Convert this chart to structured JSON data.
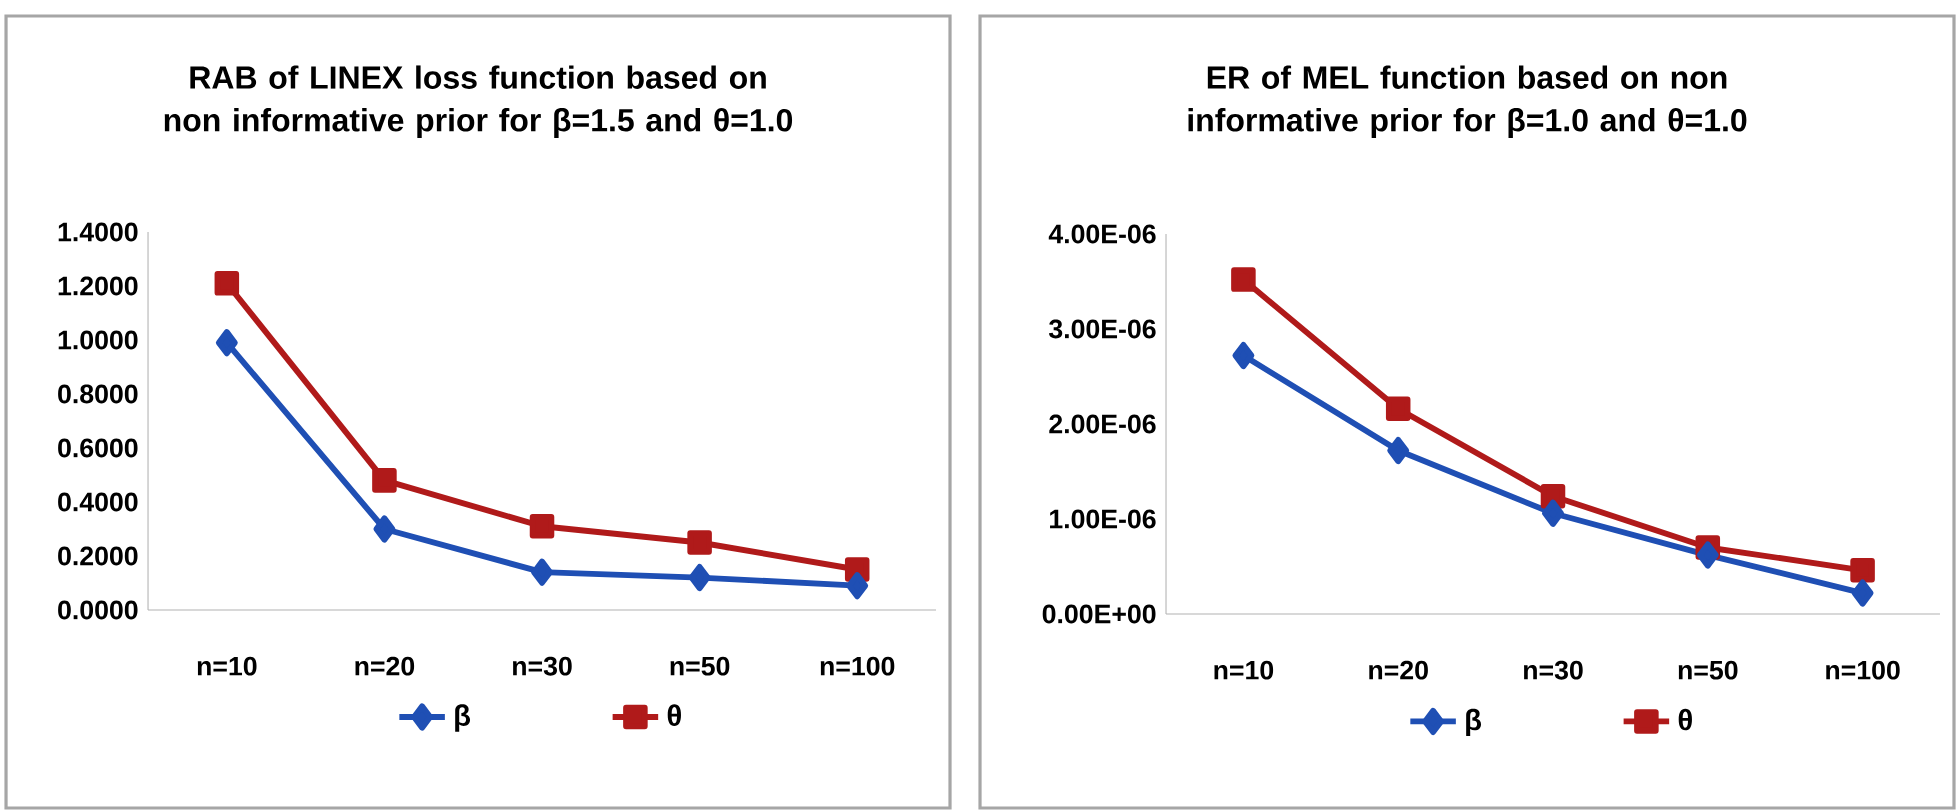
{
  "chart_data": [
    {
      "type": "line",
      "title": "RAB of LINEX loss function based on non informative prior for  β=1.5 and θ=1.0",
      "categories": [
        "n=10",
        "n=20",
        "n=30",
        "n=50",
        "n=100"
      ],
      "series": [
        {
          "name": "β",
          "color": "#1f4fb4",
          "marker": "diamond",
          "values": [
            0.99,
            0.3,
            0.14,
            0.12,
            0.09
          ]
        },
        {
          "name": "θ",
          "color": "#b01a1a",
          "marker": "square",
          "values": [
            1.21,
            0.48,
            0.31,
            0.25,
            0.15
          ]
        }
      ],
      "ylim": [
        0,
        1.4
      ],
      "yticks": [
        {
          "value": 0,
          "label": "0.0000"
        },
        {
          "value": 0.2,
          "label": "0.2000"
        },
        {
          "value": 0.4,
          "label": "0.4000"
        },
        {
          "value": 0.6,
          "label": "0.6000"
        },
        {
          "value": 0.8,
          "label": "0.8000"
        },
        {
          "value": 1.0,
          "label": "1.0000"
        },
        {
          "value": 1.2,
          "label": "1.2000"
        },
        {
          "value": 1.4,
          "label": "1.4000"
        }
      ],
      "legend": "bottom",
      "grid": false
    },
    {
      "type": "line",
      "title": "ER of MEL function based on non informative prior for  β=1.0 and θ=1.0",
      "categories": [
        "n=10",
        "n=20",
        "n=30",
        "n=50",
        "n=100"
      ],
      "series": [
        {
          "name": "β",
          "color": "#1f4fb4",
          "marker": "diamond",
          "values": [
            2.72e-06,
            1.72e-06,
            1.06e-06,
            6.2e-07,
            2.2e-07
          ]
        },
        {
          "name": "θ",
          "color": "#b01a1a",
          "marker": "square",
          "values": [
            3.52e-06,
            2.16e-06,
            1.24e-06,
            7e-07,
            4.6e-07
          ]
        }
      ],
      "ylim": [
        0,
        4e-06
      ],
      "yticks": [
        {
          "value": 0,
          "label": "0.00E+00"
        },
        {
          "value": 1e-06,
          "label": "1.00E-06"
        },
        {
          "value": 2e-06,
          "label": "2.00E-06"
        },
        {
          "value": 3e-06,
          "label": "3.00E-06"
        },
        {
          "value": 4e-06,
          "label": "4.00E-06"
        }
      ],
      "legend": "bottom",
      "grid": false
    }
  ]
}
